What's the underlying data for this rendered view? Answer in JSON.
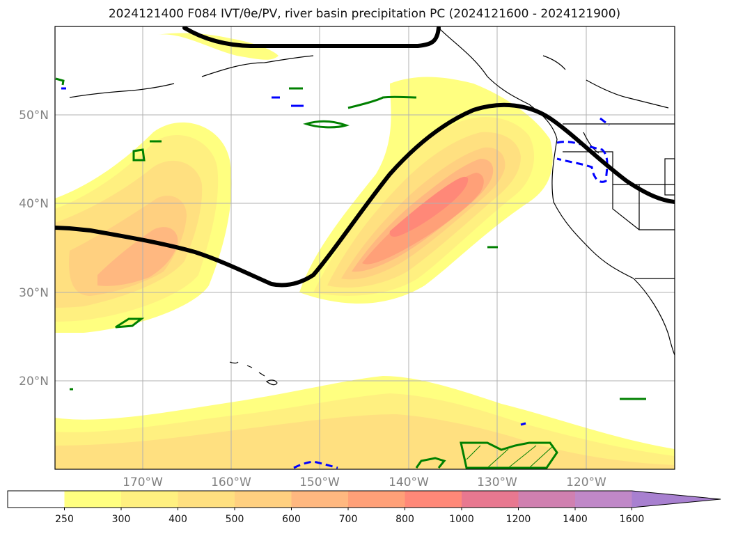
{
  "title": "2024121400 F084 IVT/θe/PV, river basin precipitation PC (2024121600 - 2024121900)",
  "map": {
    "lat_labels": [
      "50°N",
      "40°N",
      "30°N",
      "20°N"
    ],
    "lon_labels": [
      "170°W",
      "160°W",
      "150°W",
      "140°W",
      "130°W",
      "120°W"
    ]
  },
  "colorbar": {
    "ticks": [
      "250",
      "300",
      "400",
      "500",
      "600",
      "700",
      "800",
      "1000",
      "1200",
      "1400",
      "1600"
    ],
    "colors": [
      "#ffffff",
      "#ffff80",
      "#fff080",
      "#ffe080",
      "#ffd080",
      "#ffb880",
      "#ffa078",
      "#ff8878",
      "#e87890",
      "#d080b0",
      "#c088c8",
      "#a880d0"
    ],
    "extend": "max"
  },
  "colors": {
    "ivt_low": "#ffff80",
    "ivt_mid": "#ffd080",
    "ivt_high": "#ff8878",
    "theta_e_contour": "#000000",
    "pv_positive": "#008000",
    "pv_negative": "#0000ff",
    "coastline": "#000000",
    "grid": "#b0b0b0"
  }
}
